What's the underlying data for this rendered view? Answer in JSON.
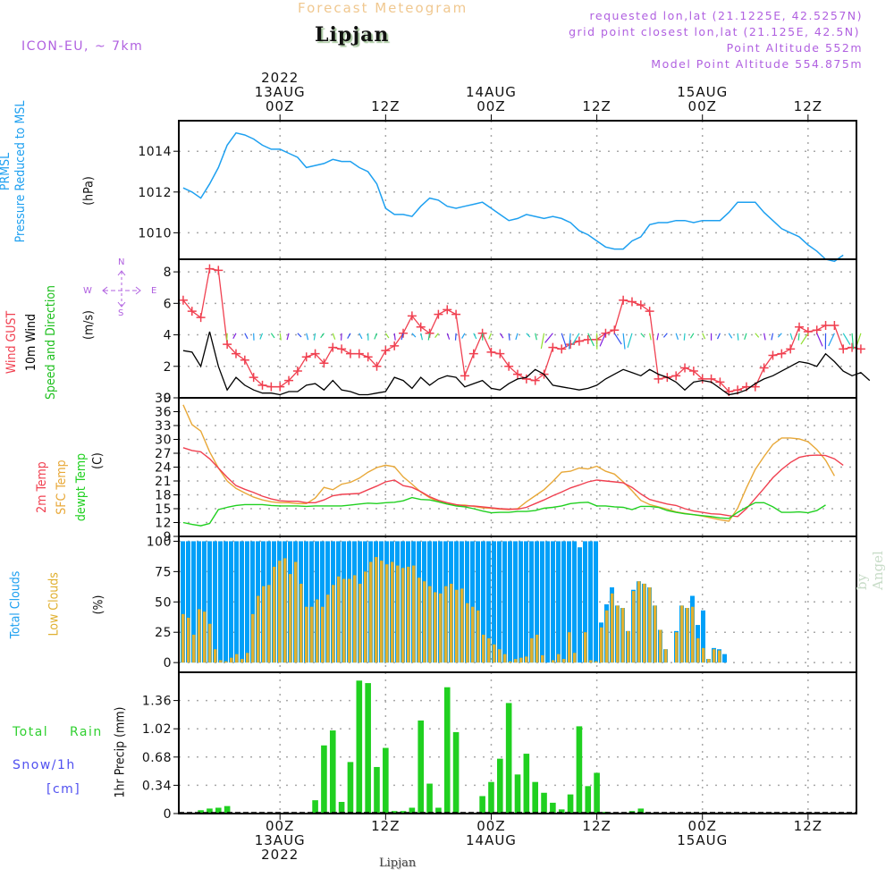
{
  "header": {
    "title": "Forecast Meteogram",
    "station": "Lipjan",
    "model": "ICON-EU, ~ 7km",
    "requested": "requested lon,lat (21.1225E, 42.5257N)",
    "grid_point": "grid point closest lon,lat (21.125E, 42.5N)",
    "point_altitude": "Point Altitude 552m",
    "model_altitude": "Model Point Altitude 554.875m"
  },
  "footer": {
    "station": "Lipjan",
    "watermark": "by Angel"
  },
  "colors": {
    "pressure": "#1ea0f0",
    "gust": "#f04050",
    "wind": "#000000",
    "temp2m": "#f04050",
    "sfc_temp": "#e8a838",
    "dewpt": "#20d020",
    "total_clouds": "#00a0f8",
    "low_clouds": "#e0b030",
    "rain": "#20d020",
    "snow": "#5050f0",
    "grid": "#a8a8a8",
    "legend_purple": "#b060e0"
  },
  "legend": {
    "compass": {
      "n": "N",
      "s": "S",
      "w": "W",
      "e": "E",
      "arrows": "<-|->"
    },
    "precip_total": "Total",
    "precip_rain": "Rain",
    "precip_snow": "Snow/1h",
    "precip_snow_unit": "[cm]"
  },
  "chart_data": [
    {
      "type": "line",
      "panel": "pressure",
      "title": "PRMSL Pressure Reduced to MSL",
      "label_lines": [
        "PRMSL",
        "Pressure Reduced to MSL"
      ],
      "ylabel": "(hPa)",
      "ylim": [
        1008.7,
        1015.5
      ],
      "yticks": [
        1010,
        1012,
        1014
      ],
      "grid": true,
      "x_hours_from": -11,
      "series": [
        {
          "name": "PRMSL",
          "values": [
            1012.2,
            1012.0,
            1011.7,
            1012.4,
            1013.2,
            1014.3,
            1014.9,
            1014.8,
            1014.6,
            1014.3,
            1014.1,
            1014.1,
            1013.9,
            1013.7,
            1013.2,
            1013.3,
            1013.4,
            1013.6,
            1013.5,
            1013.5,
            1013.2,
            1013.0,
            1012.4,
            1011.2,
            1010.9,
            1010.9,
            1010.8,
            1011.3,
            1011.7,
            1011.6,
            1011.3,
            1011.2,
            1011.3,
            1011.4,
            1011.5,
            1011.2,
            1010.9,
            1010.6,
            1010.7,
            1010.9,
            1010.8,
            1010.7,
            1010.8,
            1010.7,
            1010.5,
            1010.1,
            1009.9,
            1009.6,
            1009.3,
            1009.2,
            1009.2,
            1009.6,
            1009.8,
            1010.4,
            1010.5,
            1010.5,
            1010.6,
            1010.6,
            1010.5,
            1010.6,
            1010.6,
            1010.6,
            1011.0,
            1011.5,
            1011.5,
            1011.5,
            1011.0,
            1010.6,
            1010.2,
            1010.0,
            1009.8,
            1009.4,
            1009.1,
            1008.7,
            1008.6,
            1008.9
          ]
        }
      ]
    },
    {
      "type": "line",
      "panel": "wind",
      "label_lines": [
        "Wind GUST",
        "10m Wind",
        "Speed and Direction"
      ],
      "ylabel": "(m/s)",
      "ylim": [
        0,
        8.8
      ],
      "yticks": [
        0,
        2,
        4,
        6,
        8
      ],
      "grid": true,
      "x_hours_from": -11,
      "series": [
        {
          "name": "Wind GUST",
          "values": [
            6.2,
            5.5,
            5.1,
            8.2,
            8.1,
            3.4,
            2.8,
            2.4,
            1.3,
            0.8,
            0.7,
            0.7,
            1.1,
            1.7,
            2.6,
            2.8,
            2.2,
            3.2,
            3.1,
            2.8,
            2.8,
            2.6,
            2.0,
            3.0,
            3.3,
            4.1,
            5.2,
            4.5,
            4.1,
            5.3,
            5.6,
            5.3,
            1.4,
            2.8,
            4.1,
            2.9,
            2.8,
            2.0,
            1.5,
            1.2,
            1.1,
            1.5,
            3.2,
            3.1,
            3.4,
            3.6,
            3.7,
            3.7,
            4.1,
            4.3,
            6.2,
            6.1,
            5.9,
            5.5,
            1.2,
            1.3,
            1.4,
            1.9,
            1.7,
            1.2,
            1.2,
            1.0,
            0.4,
            0.5,
            0.7,
            0.7,
            1.9,
            2.7,
            2.8,
            3.1,
            4.5,
            4.2,
            4.3,
            4.6,
            4.6,
            3.1,
            3.2,
            3.1
          ]
        },
        {
          "name": "10m Wind",
          "values": [
            3.0,
            2.9,
            2.0,
            4.2,
            2.0,
            0.5,
            1.3,
            0.8,
            0.5,
            0.3,
            0.3,
            0.2,
            0.4,
            0.4,
            0.8,
            0.9,
            0.5,
            1.1,
            0.5,
            0.4,
            0.2,
            0.2,
            0.3,
            0.4,
            1.3,
            1.1,
            0.6,
            1.3,
            0.8,
            1.2,
            1.4,
            1.3,
            0.7,
            0.9,
            1.1,
            0.6,
            0.5,
            0.9,
            1.2,
            1.3,
            1.8,
            1.5,
            0.8,
            0.7,
            0.6,
            0.5,
            0.6,
            0.8,
            1.2,
            1.5,
            1.8,
            1.6,
            1.4,
            1.8,
            1.5,
            1.3,
            1.0,
            0.5,
            1.0,
            1.1,
            1.0,
            0.6,
            0.2,
            0.3,
            0.5,
            0.9,
            1.2,
            1.4,
            1.7,
            2.0,
            2.3,
            2.2,
            2.0,
            2.8,
            2.3,
            1.7,
            1.4,
            1.6,
            1.1
          ]
        },
        {
          "name": "Wind Direction Arrows",
          "description": "colored direction arrows plotted near 4 m/s"
        }
      ]
    },
    {
      "type": "line",
      "panel": "temperature",
      "label_lines": [
        "2m Temp",
        "SFC Temp",
        "dewpt Temp"
      ],
      "ylabel": "(C)",
      "ylim": [
        9,
        39
      ],
      "yticks": [
        9,
        12,
        15,
        18,
        21,
        24,
        27,
        30,
        33,
        36,
        39
      ],
      "grid": true,
      "x_hours_from": -11,
      "series": [
        {
          "name": "2m Temp",
          "values": [
            28.2,
            27.6,
            27.3,
            25.8,
            23.8,
            21.8,
            20.0,
            19.2,
            18.5,
            17.7,
            17.1,
            16.7,
            16.6,
            16.6,
            16.3,
            16.3,
            16.9,
            17.8,
            18.1,
            18.2,
            18.3,
            19.1,
            19.9,
            20.8,
            21.2,
            20.0,
            19.6,
            18.7,
            17.6,
            16.8,
            16.3,
            15.9,
            15.6,
            15.6,
            15.4,
            15.2,
            15.0,
            14.9,
            14.9,
            15.3,
            16.1,
            16.9,
            17.8,
            18.6,
            19.5,
            20.1,
            20.8,
            21.2,
            21.0,
            20.8,
            20.6,
            19.6,
            18.2,
            17.0,
            16.5,
            16.0,
            15.7,
            15.0,
            14.5,
            14.2,
            13.9,
            13.8,
            13.5,
            13.3,
            15.0,
            17.2,
            19.4,
            21.7,
            23.5,
            25.0,
            26.1,
            26.5,
            26.6,
            26.5,
            25.8,
            24.4
          ]
        },
        {
          "name": "SFC Temp",
          "values": [
            37.5,
            33.2,
            31.8,
            27.3,
            23.8,
            21.0,
            19.4,
            18.4,
            17.5,
            16.9,
            16.5,
            16.3,
            16.3,
            16.1,
            16.1,
            17.3,
            19.6,
            19.1,
            20.3,
            20.7,
            21.6,
            22.9,
            23.9,
            24.4,
            24.1,
            21.9,
            20.3,
            18.6,
            17.4,
            16.5,
            16.0,
            15.8,
            15.8,
            15.5,
            15.2,
            15.1,
            14.9,
            14.8,
            15.0,
            16.5,
            17.8,
            19.1,
            20.9,
            22.9,
            23.1,
            23.8,
            23.6,
            24.2,
            23.1,
            22.5,
            20.8,
            18.9,
            16.8,
            15.9,
            15.4,
            14.9,
            14.3,
            14.0,
            13.7,
            13.4,
            13.0,
            12.6,
            12.3,
            15.1,
            19.5,
            23.5,
            26.3,
            28.9,
            30.3,
            30.3,
            30.1,
            29.5,
            27.8,
            25.5,
            22.1
          ]
        },
        {
          "name": "dewpt Temp",
          "values": [
            12.0,
            11.6,
            11.3,
            11.8,
            14.8,
            15.3,
            15.7,
            15.9,
            15.9,
            15.9,
            15.7,
            15.6,
            15.6,
            15.6,
            15.5,
            15.6,
            15.6,
            15.6,
            15.6,
            15.8,
            16.0,
            16.2,
            16.1,
            16.3,
            16.4,
            16.7,
            17.4,
            17.0,
            16.9,
            16.5,
            16.0,
            15.6,
            15.4,
            15.0,
            14.5,
            14.1,
            14.2,
            14.2,
            14.4,
            14.4,
            14.6,
            15.1,
            15.3,
            15.6,
            16.1,
            16.3,
            16.4,
            15.6,
            15.6,
            15.4,
            15.3,
            14.8,
            15.5,
            15.5,
            15.3,
            14.6,
            14.2,
            13.9,
            13.7,
            13.5,
            13.3,
            13.0,
            12.9,
            14.2,
            15.3,
            16.3,
            16.3,
            15.4,
            14.2,
            14.2,
            14.3,
            14.1,
            14.6,
            15.8
          ]
        }
      ]
    },
    {
      "type": "bar",
      "panel": "clouds",
      "label_lines": [
        "Total Clouds",
        "Low Clouds"
      ],
      "ylabel": "(%)",
      "ylim": [
        -8,
        104
      ],
      "yticks": [
        0,
        25,
        50,
        75,
        100
      ],
      "grid": true,
      "x_hours_from": -12,
      "series": [
        {
          "name": "Total Clouds",
          "values": [
            100,
            100,
            100,
            100,
            100,
            100,
            100,
            100,
            100,
            100,
            100,
            100,
            100,
            100,
            100,
            100,
            100,
            100,
            100,
            100,
            100,
            100,
            100,
            100,
            100,
            100,
            100,
            100,
            100,
            100,
            100,
            100,
            100,
            100,
            100,
            100,
            100,
            100,
            100,
            100,
            100,
            100,
            100,
            100,
            100,
            100,
            100,
            100,
            100,
            100,
            100,
            100,
            100,
            100,
            100,
            100,
            100,
            100,
            100,
            100,
            100,
            100,
            100,
            100,
            100,
            100,
            100,
            100,
            100,
            100,
            100,
            100,
            100,
            100,
            95,
            100,
            100,
            100,
            33,
            48,
            62,
            47,
            45,
            26,
            60,
            67,
            65,
            62,
            47,
            27,
            11,
            0,
            26,
            47,
            45,
            55,
            31,
            43,
            3,
            12,
            11,
            7
          ]
        },
        {
          "name": "Low Clouds",
          "values": [
            40,
            37,
            23,
            44,
            42,
            32,
            11,
            2,
            1,
            4,
            7,
            3,
            8,
            40,
            55,
            63,
            64,
            79,
            84,
            86,
            73,
            83,
            65,
            46,
            46,
            52,
            46,
            56,
            64,
            71,
            69,
            69,
            72,
            65,
            75,
            83,
            87,
            84,
            81,
            83,
            80,
            78,
            79,
            80,
            70,
            67,
            63,
            58,
            57,
            63,
            65,
            60,
            61,
            49,
            46,
            43,
            23,
            20,
            15,
            11,
            7,
            1,
            3,
            4,
            5,
            20,
            23,
            6,
            0,
            2,
            7,
            3,
            25,
            8,
            0,
            25,
            2,
            1,
            29,
            43,
            57,
            47,
            45,
            26,
            59,
            67,
            65,
            62,
            47,
            27,
            11,
            0,
            25,
            47,
            45,
            46,
            20,
            12,
            3,
            11,
            10,
            0
          ]
        }
      ]
    },
    {
      "type": "bar",
      "panel": "precip",
      "label_lines": [
        "Total Rain",
        "Snow/1h [cm]"
      ],
      "ylabel": "1hr Precip (mm)",
      "ylim": [
        0,
        1.7
      ],
      "yticks": [
        0,
        0.34,
        0.68,
        1.02,
        1.36
      ],
      "ytick_labels": [
        "0",
        "0.34",
        "0.68",
        "1.02",
        "1.36"
      ],
      "grid": true,
      "x_hours_from": -11,
      "series": [
        {
          "name": "Total Rain",
          "values": [
            0,
            0,
            0.04,
            0.06,
            0.07,
            0.09,
            0,
            0,
            0,
            0,
            0,
            0,
            0,
            0,
            0,
            0.16,
            0.82,
            1.0,
            0.14,
            0.62,
            1.6,
            1.57,
            0.56,
            0.79,
            0.03,
            0.03,
            0.07,
            1.12,
            0.36,
            0.07,
            1.52,
            0.98,
            0,
            0,
            0.21,
            0.38,
            0.66,
            1.33,
            0.47,
            0.72,
            0.38,
            0.25,
            0.13,
            0.05,
            0.23,
            1.05,
            0.33,
            0.49,
            0.02,
            0,
            0,
            0.03,
            0.06,
            0,
            0,
            0,
            0,
            0,
            0,
            0,
            0,
            0,
            0,
            0,
            0,
            0,
            0,
            0,
            0,
            0,
            0,
            0,
            0,
            0,
            0,
            0,
            0
          ]
        },
        {
          "name": "Snow/1h",
          "values": []
        }
      ]
    }
  ],
  "x_axis": {
    "top_ticks": [
      {
        "hour": 0,
        "lines": [
          "2022",
          "13AUG",
          "00Z"
        ]
      },
      {
        "hour": 12,
        "lines": [
          "12Z"
        ]
      },
      {
        "hour": 24,
        "lines": [
          "14AUG",
          "00Z"
        ]
      },
      {
        "hour": 36,
        "lines": [
          "12Z"
        ]
      },
      {
        "hour": 48,
        "lines": [
          "15AUG",
          "00Z"
        ]
      },
      {
        "hour": 60,
        "lines": [
          "12Z"
        ]
      }
    ],
    "bottom_ticks": [
      {
        "hour": 0,
        "lines": [
          "00Z",
          "13AUG",
          "2022"
        ]
      },
      {
        "hour": 12,
        "lines": [
          "12Z"
        ]
      },
      {
        "hour": 24,
        "lines": [
          "00Z",
          "14AUG"
        ]
      },
      {
        "hour": 36,
        "lines": [
          "12Z"
        ]
      },
      {
        "hour": 48,
        "lines": [
          "00Z",
          "15AUG"
        ]
      },
      {
        "hour": 60,
        "lines": [
          "12Z"
        ]
      }
    ]
  }
}
